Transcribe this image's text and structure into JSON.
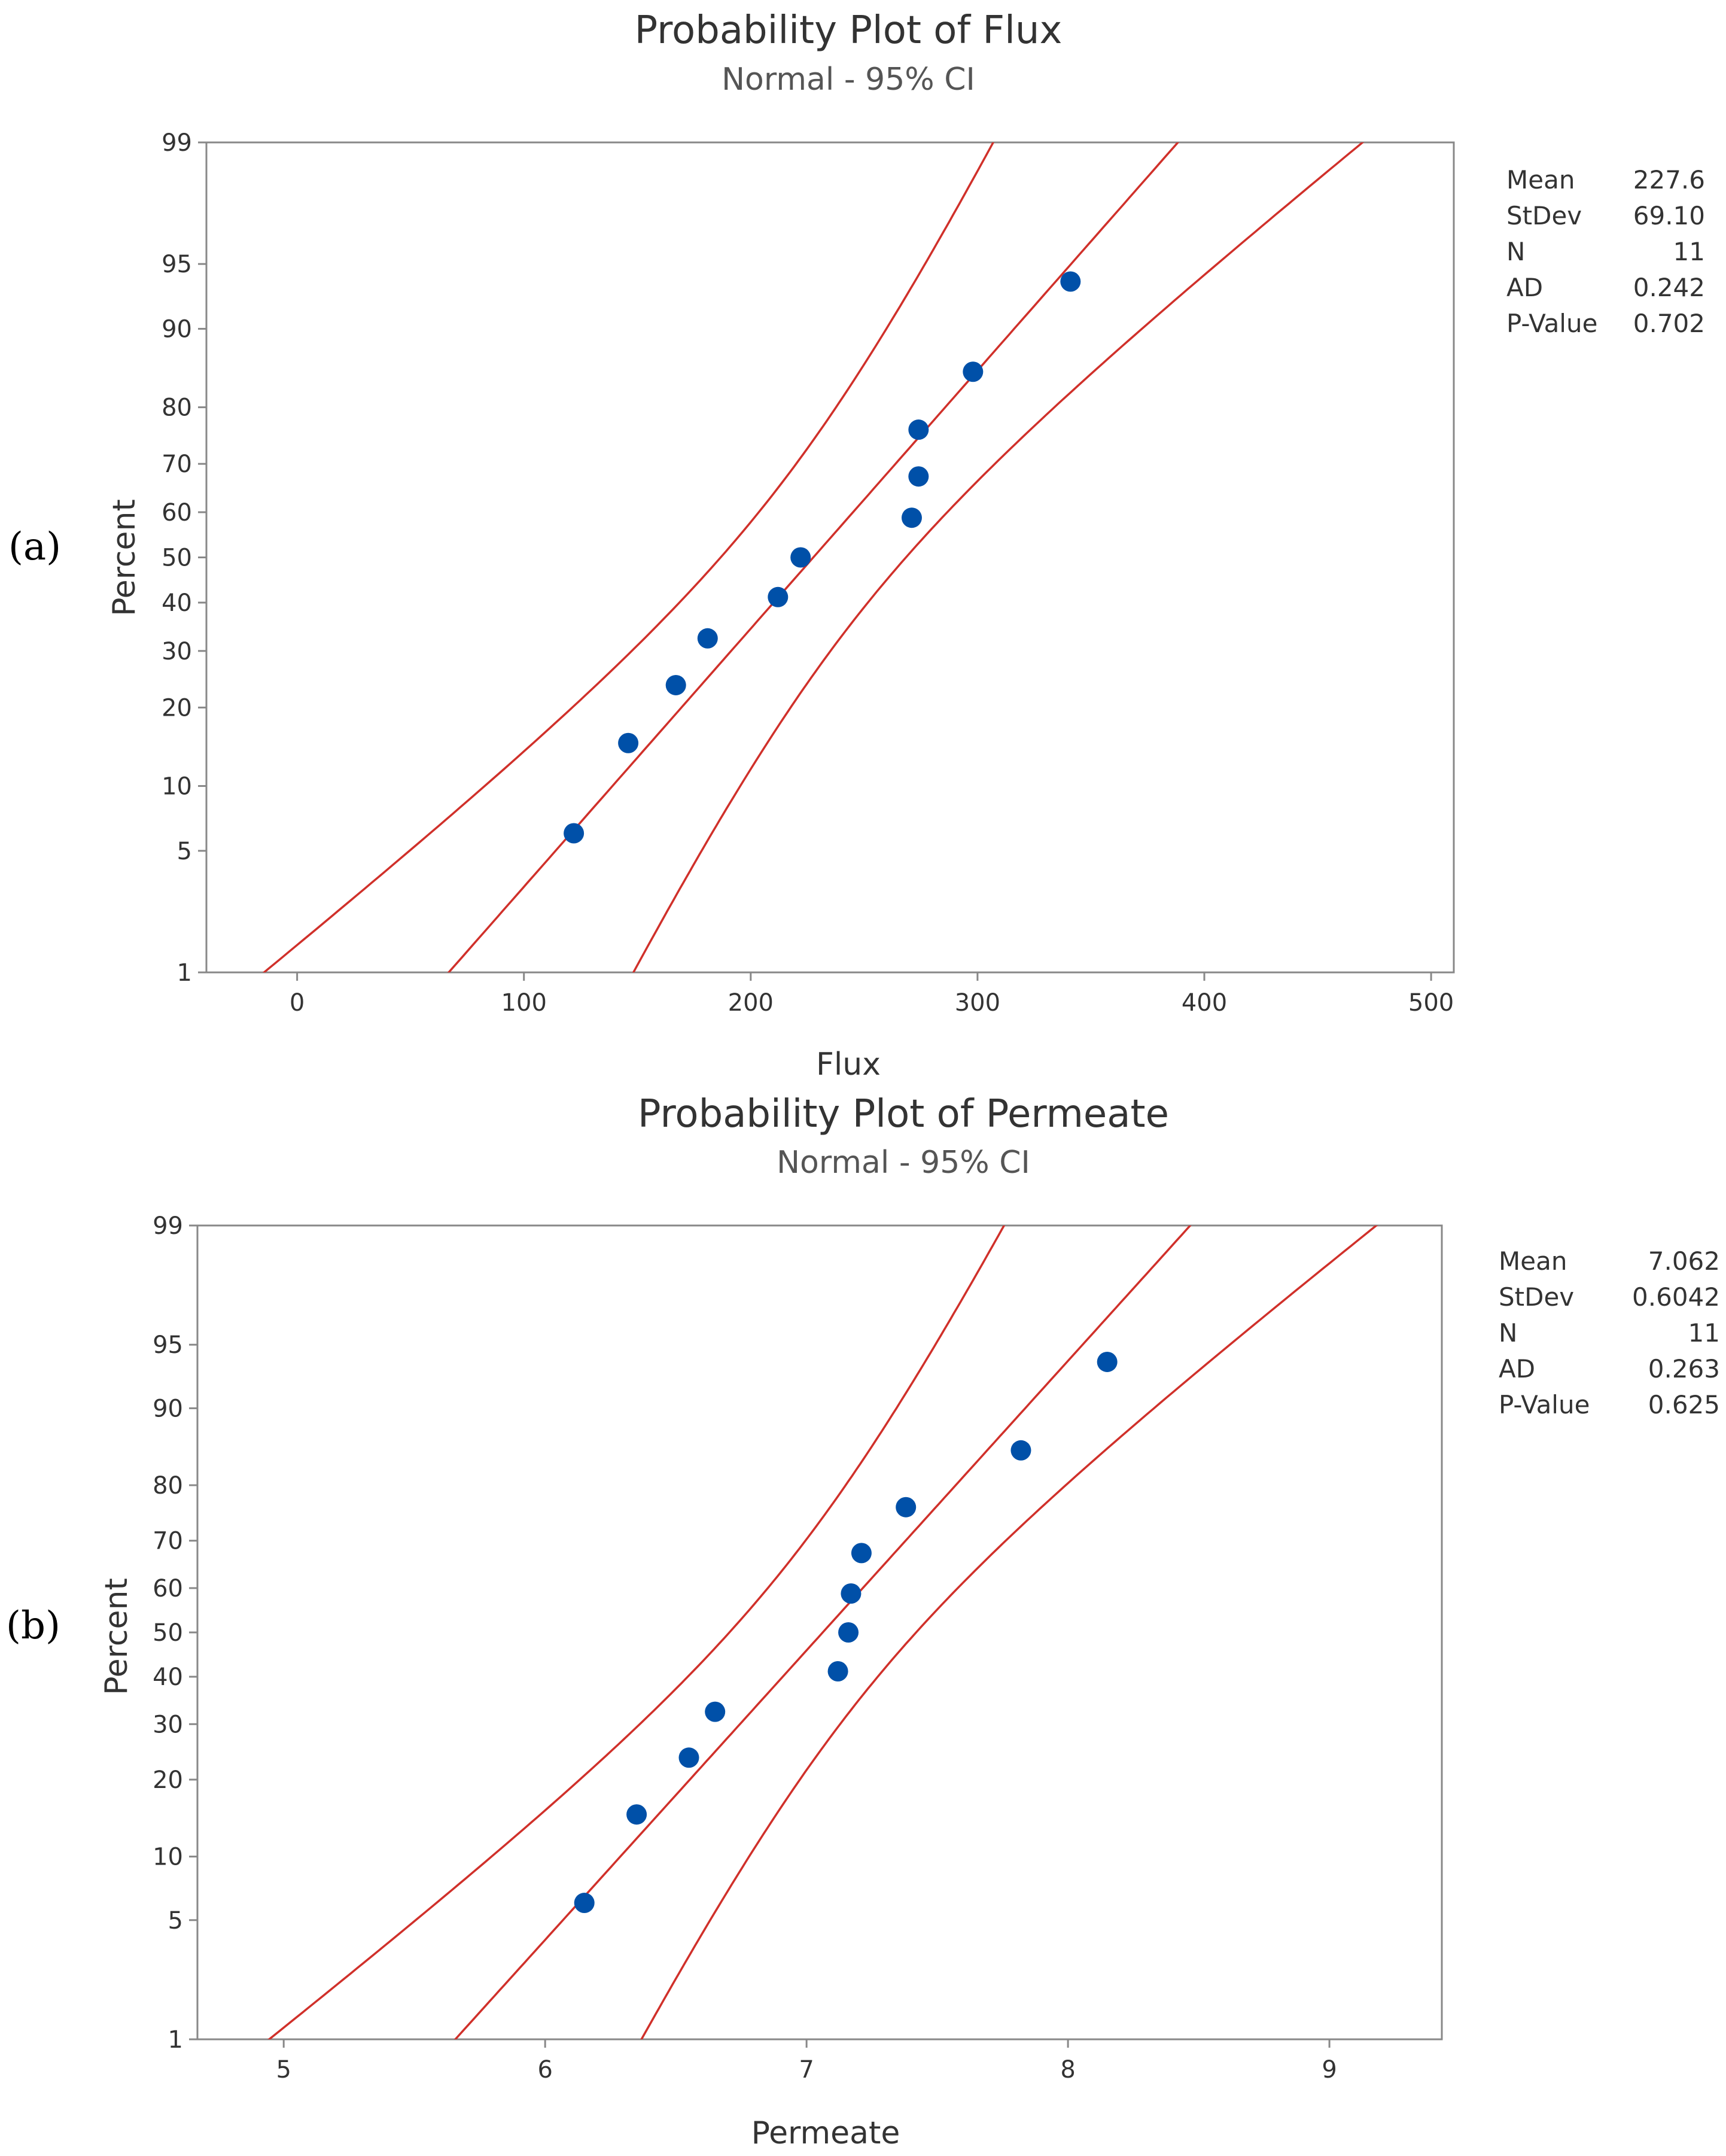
{
  "chart_data": [
    {
      "type": "scatter",
      "panel_label": "(a)",
      "title": "Probability Plot of Flux",
      "subtitle": "Normal - 95% CI",
      "xlabel": "Flux",
      "ylabel": "Percent",
      "xlim": [
        -40,
        510
      ],
      "ylim": [
        1,
        99
      ],
      "y_scale": "normal-probability",
      "x_ticks": [
        0,
        100,
        200,
        300,
        400,
        500
      ],
      "y_ticks": [
        1,
        5,
        10,
        20,
        30,
        40,
        50,
        60,
        70,
        80,
        90,
        95,
        99
      ],
      "grid": false,
      "legend": "top-right",
      "points": [
        {
          "x": 122,
          "y": 6.1
        },
        {
          "x": 146,
          "y": 14.9
        },
        {
          "x": 167,
          "y": 23.7
        },
        {
          "x": 181,
          "y": 32.5
        },
        {
          "x": 212,
          "y": 41.2
        },
        {
          "x": 222,
          "y": 50.0
        },
        {
          "x": 271,
          "y": 58.8
        },
        {
          "x": 274,
          "y": 67.5
        },
        {
          "x": 274,
          "y": 76.3
        },
        {
          "x": 298,
          "y": 85.1
        },
        {
          "x": 341,
          "y": 93.9
        }
      ],
      "fit": {
        "mean": 227.6,
        "stdev": 69.1,
        "n": 11,
        "z_low": -2.326,
        "z_high": 2.326
      },
      "stats": [
        {
          "label": "Mean",
          "value": "227.6"
        },
        {
          "label": "StDev",
          "value": "69.10"
        },
        {
          "label": "N",
          "value": "11"
        },
        {
          "label": "AD",
          "value": "0.242"
        },
        {
          "label": "P-Value",
          "value": "0.702"
        }
      ],
      "colors": {
        "points": "#0050a8",
        "lines": "#d0302a",
        "frame": "#888888",
        "text": "#333333"
      }
    },
    {
      "type": "scatter",
      "panel_label": "(b)",
      "title": "Probability Plot of Permeate",
      "subtitle": "Normal - 95% CI",
      "xlabel": "Permeate",
      "ylabel": "Percent",
      "xlim": [
        4.67,
        9.43
      ],
      "ylim": [
        1,
        99
      ],
      "y_scale": "normal-probability",
      "x_ticks": [
        5,
        6,
        7,
        8,
        9
      ],
      "y_ticks": [
        1,
        5,
        10,
        20,
        30,
        40,
        50,
        60,
        70,
        80,
        90,
        95,
        99
      ],
      "grid": false,
      "legend": "top-right",
      "points": [
        {
          "x": 6.15,
          "y": 6.1
        },
        {
          "x": 6.35,
          "y": 14.9
        },
        {
          "x": 6.55,
          "y": 23.7
        },
        {
          "x": 6.65,
          "y": 32.5
        },
        {
          "x": 7.12,
          "y": 41.2
        },
        {
          "x": 7.16,
          "y": 50.0
        },
        {
          "x": 7.17,
          "y": 58.8
        },
        {
          "x": 7.21,
          "y": 67.5
        },
        {
          "x": 7.38,
          "y": 76.3
        },
        {
          "x": 7.82,
          "y": 85.1
        },
        {
          "x": 8.15,
          "y": 93.9
        }
      ],
      "fit": {
        "mean": 7.062,
        "stdev": 0.6042,
        "n": 11,
        "z_low": -2.326,
        "z_high": 2.326
      },
      "stats": [
        {
          "label": "Mean",
          "value": "7.062"
        },
        {
          "label": "StDev",
          "value": "0.6042"
        },
        {
          "label": "N",
          "value": "11"
        },
        {
          "label": "AD",
          "value": "0.263"
        },
        {
          "label": "P-Value",
          "value": "0.625"
        }
      ],
      "colors": {
        "points": "#0050a8",
        "lines": "#d0302a",
        "frame": "#888888",
        "text": "#333333"
      }
    }
  ]
}
